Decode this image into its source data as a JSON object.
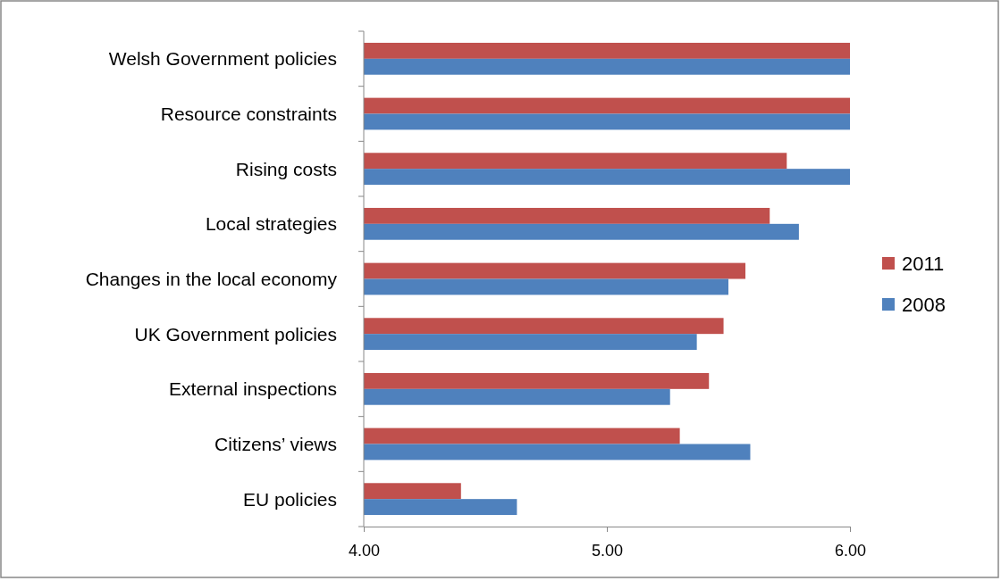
{
  "chart_data": {
    "type": "bar",
    "orientation": "horizontal",
    "categories": [
      "Welsh Government policies",
      "Resource constraints",
      "Rising costs",
      "Local strategies",
      "Changes in the local economy",
      "UK Government policies",
      "External inspections",
      "Citizens’ views",
      "EU policies"
    ],
    "series": [
      {
        "name": "2011",
        "color": "#c0504d",
        "values": [
          6.0,
          6.0,
          5.74,
          5.67,
          5.57,
          5.48,
          5.42,
          5.3,
          4.4
        ]
      },
      {
        "name": "2008",
        "color": "#4f81bd",
        "values": [
          6.0,
          6.0,
          6.0,
          5.79,
          5.5,
          5.37,
          5.26,
          5.59,
          4.63
        ]
      }
    ],
    "xlim": [
      4,
      6
    ],
    "xticks": [
      {
        "value": 4,
        "label": "4.00"
      },
      {
        "value": 5,
        "label": "5.00"
      },
      {
        "value": 6,
        "label": "6.00"
      }
    ],
    "grid": false,
    "legend": "right"
  }
}
